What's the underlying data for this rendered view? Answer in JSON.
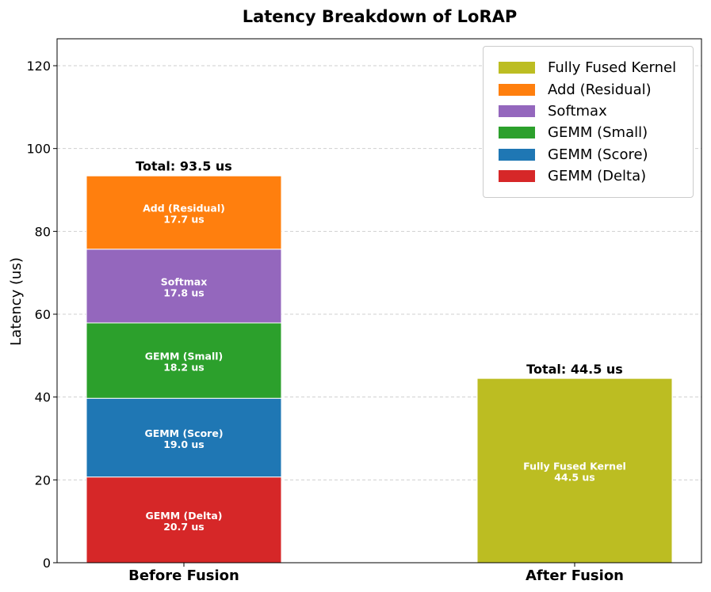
{
  "chart_data": {
    "type": "bar",
    "stacked": true,
    "title": "Latency Breakdown of LoRAP",
    "xlabel": "",
    "ylabel": "Latency (us)",
    "ylim": [
      0,
      126.5
    ],
    "yticks": [
      0,
      20,
      40,
      60,
      80,
      100,
      120
    ],
    "grid": true,
    "legend_position": "top-right",
    "categories": [
      "Before Fusion",
      "After Fusion"
    ],
    "series": [
      {
        "name": "GEMM (Delta)",
        "color": "#d62728",
        "values": [
          20.7,
          0
        ],
        "label_line1": "GEMM (Delta)",
        "label_line2": "20.7 us"
      },
      {
        "name": "GEMM (Score)",
        "color": "#1f77b4",
        "values": [
          19.0,
          0
        ],
        "label_line1": "GEMM (Score)",
        "label_line2": "19.0 us"
      },
      {
        "name": "GEMM (Small)",
        "color": "#2ca02c",
        "values": [
          18.2,
          0
        ],
        "label_line1": "GEMM (Small)",
        "label_line2": "18.2 us"
      },
      {
        "name": "Softmax",
        "color": "#9467bd",
        "values": [
          17.8,
          0
        ],
        "label_line1": "Softmax",
        "label_line2": "17.8 us"
      },
      {
        "name": "Add (Residual)",
        "color": "#ff7f0e",
        "values": [
          17.7,
          0
        ],
        "label_line1": "Add (Residual)",
        "label_line2": "17.7 us"
      },
      {
        "name": "Fully Fused Kernel",
        "color": "#bcbd22",
        "values": [
          0,
          44.5
        ],
        "label_line1": "Fully Fused Kernel",
        "label_line2": "44.5 us"
      }
    ],
    "totals": [
      {
        "category": "Before Fusion",
        "value": 93.5,
        "label": "Total: 93.5 us"
      },
      {
        "category": "After Fusion",
        "value": 44.5,
        "label": "Total: 44.5 us"
      }
    ],
    "legend_order": [
      "Fully Fused Kernel",
      "Add (Residual)",
      "Softmax",
      "GEMM (Small)",
      "GEMM (Score)",
      "GEMM (Delta)"
    ]
  }
}
